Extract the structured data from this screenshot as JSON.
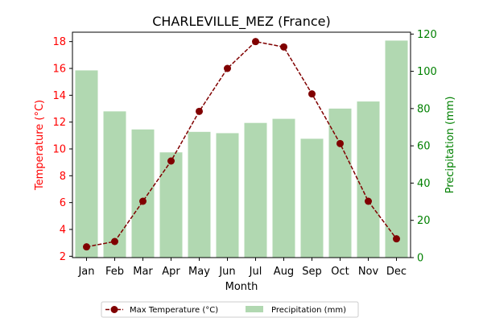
{
  "chart_data": {
    "type": "bar+line",
    "title": "CHARLEVILLE_MEZ (France)",
    "xlabel": "Month",
    "categories": [
      "Jan",
      "Feb",
      "Mar",
      "Apr",
      "May",
      "Jun",
      "Jul",
      "Aug",
      "Sep",
      "Oct",
      "Nov",
      "Dec"
    ],
    "y_left": {
      "label": "Temperature (°C)",
      "range": [
        1.9,
        18.7
      ],
      "ticks": [
        2,
        4,
        6,
        8,
        10,
        12,
        14,
        16,
        18
      ],
      "color": "#ff0000"
    },
    "y_right": {
      "label": "Precipitation (mm)",
      "range": [
        0,
        121
      ],
      "ticks": [
        0,
        20,
        40,
        60,
        80,
        100,
        120
      ],
      "color": "#008000"
    },
    "series": [
      {
        "name": "Max Temperature (°C)",
        "kind": "line",
        "axis": "left",
        "color": "#800000",
        "values": [
          2.7,
          3.1,
          6.1,
          9.1,
          12.8,
          16.0,
          18.0,
          17.6,
          14.1,
          10.4,
          6.1,
          3.3
        ]
      },
      {
        "name": "Precipitation (mm)",
        "kind": "bar",
        "axis": "right",
        "color": "#b1d8b1",
        "values": [
          100.5,
          78.5,
          68.8,
          56.5,
          67.5,
          66.8,
          72.3,
          74.5,
          63.8,
          80.0,
          83.8,
          116.5
        ]
      }
    ],
    "legend": {
      "placement": "bottom-center"
    },
    "grid": false
  }
}
